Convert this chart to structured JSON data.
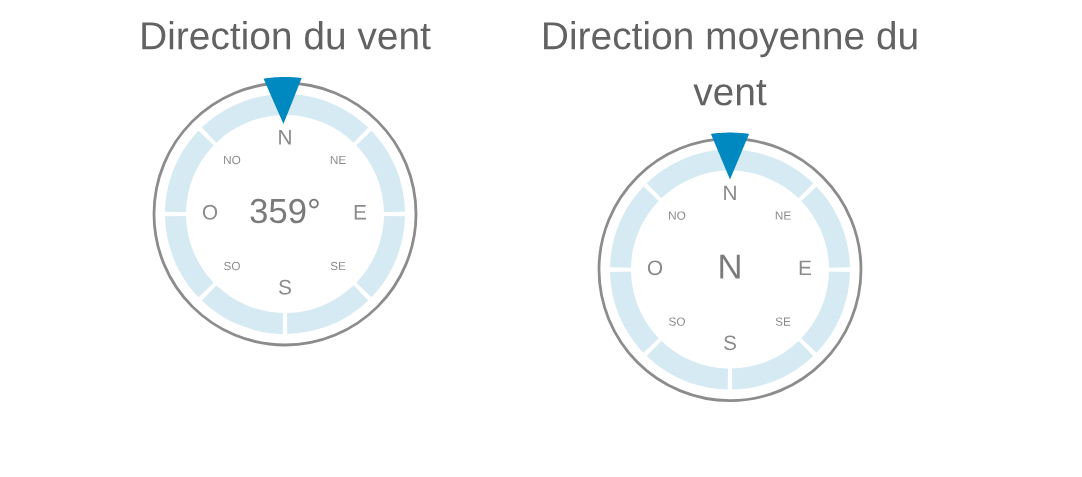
{
  "chart_data": [
    {
      "type": "other",
      "title": "Direction du vent",
      "annotations": [
        "N",
        "NE",
        "E",
        "SE",
        "S",
        "SO",
        "O",
        "NO"
      ],
      "values": [
        359
      ],
      "value_labels": [
        "359°"
      ],
      "color": "#0088c0"
    },
    {
      "type": "other",
      "title": "Direction moyenne du vent",
      "categories": [
        "N",
        "NE",
        "E",
        "SE",
        "S",
        "SO",
        "O",
        "NO"
      ],
      "needle": "N",
      "color": "#0088c0"
    }
  ]
}
